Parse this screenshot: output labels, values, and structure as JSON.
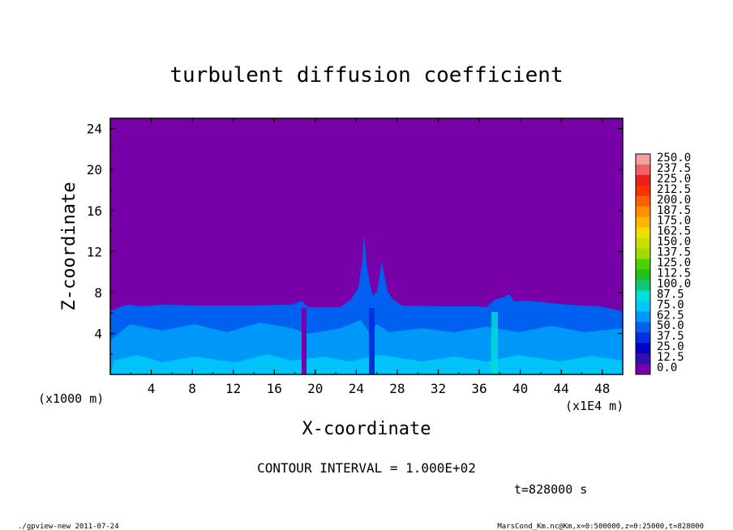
{
  "chart_data": {
    "type": "heatmap",
    "title": "turbulent diffusion coefficient",
    "xlabel": "X-coordinate",
    "ylabel": "Z-coordinate",
    "x_unit_label": "(x1E4 m)",
    "y_unit_label": "(x1000 m)",
    "xlim": [
      0,
      50
    ],
    "ylim": [
      0,
      25
    ],
    "x_ticks": [
      "4",
      "8",
      "12",
      "16",
      "20",
      "24",
      "28",
      "32",
      "36",
      "40",
      "44",
      "48"
    ],
    "y_ticks": [
      "4",
      "8",
      "12",
      "16",
      "20",
      "24"
    ],
    "x_tick_values": [
      4,
      8,
      12,
      16,
      20,
      24,
      28,
      32,
      36,
      40,
      44,
      48
    ],
    "y_tick_values": [
      4,
      8,
      12,
      16,
      20,
      24
    ],
    "contour_interval_label": "CONTOUR INTERVAL = 1.000E+02",
    "time_label": "t=828000 s",
    "colorbar": {
      "levels": [
        "250.0",
        "237.5",
        "225.0",
        "212.5",
        "200.0",
        "187.5",
        "175.0",
        "162.5",
        "150.0",
        "137.5",
        "125.0",
        "112.5",
        "100.0",
        "87.5",
        "75.0",
        "62.5",
        "50.0",
        "37.5",
        "25.0",
        "12.5",
        "0.0"
      ],
      "colors": [
        "#f4a0a0",
        "#f26262",
        "#e82020",
        "#ff3000",
        "#ff6000",
        "#ff9000",
        "#ffb400",
        "#f0e000",
        "#c8e000",
        "#a0dc00",
        "#50d000",
        "#20c020",
        "#10c870",
        "#00e0d8",
        "#00c8f8",
        "#0098f8",
        "#0060f0",
        "#0030e0",
        "#0000c8",
        "#3010b0",
        "#7800a8"
      ]
    },
    "background_color": "#7800a8",
    "turbulent_layer_top_approx": 6.5,
    "peaks": [
      {
        "x": 25.0,
        "top": 13.5
      },
      {
        "x": 26.4,
        "top": 11.0
      },
      {
        "x": 38.9,
        "top": 7.9
      }
    ]
  },
  "footer": {
    "left": "./gpview-new  2011-07-24",
    "right": "MarsCond_Km.nc@Km,x=0:500000,z=0:25000,t=828000"
  }
}
